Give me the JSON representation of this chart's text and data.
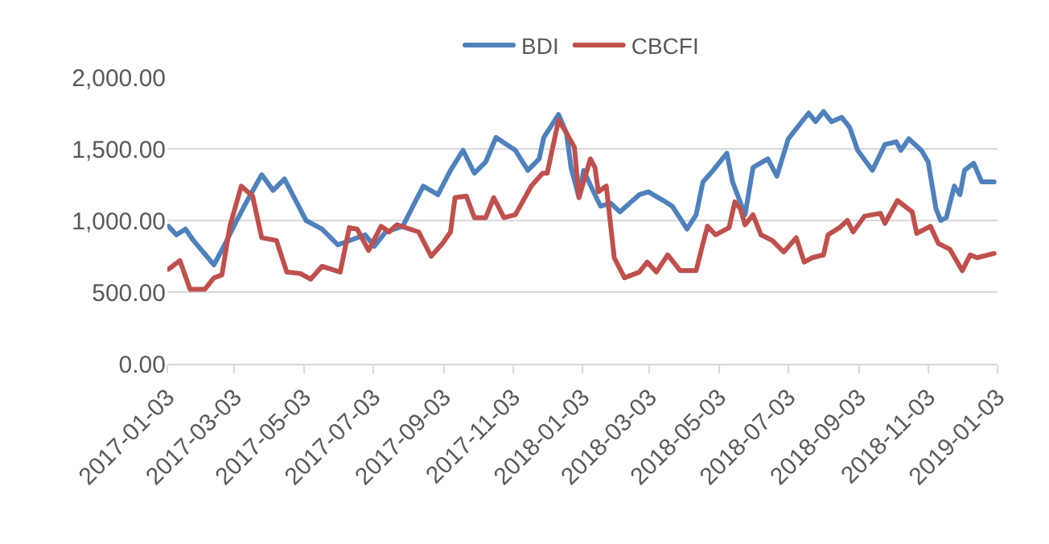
{
  "chart_data": {
    "type": "line",
    "legend": "top",
    "grid": "y",
    "marker": "none",
    "line_style": "solid",
    "xlim": [
      "2017-01-03",
      "2019-01-03"
    ],
    "xticks": [
      "2017-01-03",
      "2017-03-03",
      "2017-05-03",
      "2017-07-03",
      "2017-09-03",
      "2017-11-03",
      "2018-01-03",
      "2018-03-03",
      "2018-05-03",
      "2018-07-03",
      "2018-09-03",
      "2018-11-03",
      "2019-01-03"
    ],
    "ylim": [
      0,
      2000
    ],
    "yticks": [
      {
        "value": 0,
        "label": "0.00"
      },
      {
        "value": 500,
        "label": "500.00"
      },
      {
        "value": 1000,
        "label": "1,000.00"
      },
      {
        "value": 1500,
        "label": "1,500.00"
      },
      {
        "value": 2000,
        "label": "2,000.00"
      }
    ],
    "series": [
      {
        "name": "BDI",
        "color": "#4f81bd",
        "x": [
          "2017-01-04",
          "2017-01-11",
          "2017-01-19",
          "2017-01-26",
          "2017-02-13",
          "2017-02-23",
          "2017-03-05",
          "2017-03-13",
          "2017-03-27",
          "2017-04-06",
          "2017-04-16",
          "2017-05-05",
          "2017-05-19",
          "2017-06-02",
          "2017-06-26",
          "2017-07-04",
          "2017-07-14",
          "2017-07-29",
          "2017-08-07",
          "2017-08-16",
          "2017-08-29",
          "2017-09-09",
          "2017-09-20",
          "2017-09-30",
          "2017-10-10",
          "2017-10-19",
          "2017-11-05",
          "2017-11-16",
          "2017-11-26",
          "2017-11-30",
          "2017-12-13",
          "2017-12-20",
          "2017-12-24",
          "2017-12-31",
          "2018-01-04",
          "2018-01-14",
          "2018-01-19",
          "2018-01-28",
          "2018-02-05",
          "2018-02-12",
          "2018-02-22",
          "2018-03-02",
          "2018-03-15",
          "2018-03-23",
          "2018-04-05",
          "2018-04-13",
          "2018-04-19",
          "2018-04-28",
          "2018-05-10",
          "2018-05-15",
          "2018-05-26",
          "2018-06-02",
          "2018-06-15",
          "2018-06-23",
          "2018-07-03",
          "2018-07-13",
          "2018-07-21",
          "2018-07-27",
          "2018-08-03",
          "2018-08-10",
          "2018-08-19",
          "2018-08-26",
          "2018-09-02",
          "2018-09-15",
          "2018-09-26",
          "2018-10-06",
          "2018-10-10",
          "2018-10-17",
          "2018-10-28",
          "2018-11-03",
          "2018-11-10",
          "2018-11-14",
          "2018-11-19",
          "2018-11-26",
          "2018-12-01",
          "2018-12-05",
          "2018-12-13",
          "2018-12-20",
          "2018-12-31"
        ],
        "values": [
          960,
          900,
          940,
          860,
          690,
          840,
          1000,
          1120,
          1320,
          1210,
          1290,
          1000,
          940,
          830,
          900,
          820,
          920,
          960,
          1100,
          1240,
          1180,
          1350,
          1490,
          1330,
          1410,
          1580,
          1490,
          1350,
          1430,
          1580,
          1740,
          1610,
          1370,
          1160,
          1350,
          1180,
          1100,
          1120,
          1060,
          1110,
          1180,
          1200,
          1140,
          1100,
          940,
          1040,
          1270,
          1350,
          1470,
          1270,
          1040,
          1370,
          1430,
          1310,
          1570,
          1670,
          1750,
          1690,
          1760,
          1690,
          1720,
          1650,
          1490,
          1350,
          1530,
          1550,
          1490,
          1570,
          1490,
          1410,
          1080,
          1000,
          1020,
          1240,
          1180,
          1350,
          1400,
          1270,
          1270
        ]
      },
      {
        "name": "CBCFI",
        "color": "#c0504d",
        "x": [
          "2017-01-04",
          "2017-01-14",
          "2017-01-23",
          "2017-02-05",
          "2017-02-13",
          "2017-02-20",
          "2017-02-27",
          "2017-03-09",
          "2017-03-19",
          "2017-03-27",
          "2017-04-09",
          "2017-04-18",
          "2017-04-30",
          "2017-05-09",
          "2017-05-19",
          "2017-06-04",
          "2017-06-12",
          "2017-06-19",
          "2017-06-29",
          "2017-07-10",
          "2017-07-17",
          "2017-07-24",
          "2017-08-12",
          "2017-08-23",
          "2017-09-02",
          "2017-09-09",
          "2017-09-13",
          "2017-09-23",
          "2017-09-30",
          "2017-10-10",
          "2017-10-17",
          "2017-10-26",
          "2017-11-05",
          "2017-11-19",
          "2017-11-29",
          "2017-12-03",
          "2017-12-13",
          "2017-12-20",
          "2017-12-27",
          "2017-12-31",
          "2018-01-10",
          "2018-01-14",
          "2018-01-17",
          "2018-01-24",
          "2018-01-31",
          "2018-02-09",
          "2018-02-22",
          "2018-03-01",
          "2018-03-09",
          "2018-03-19",
          "2018-03-30",
          "2018-04-13",
          "2018-04-19",
          "2018-04-23",
          "2018-04-30",
          "2018-05-12",
          "2018-05-17",
          "2018-05-22",
          "2018-05-26",
          "2018-06-02",
          "2018-06-09",
          "2018-06-19",
          "2018-06-29",
          "2018-07-10",
          "2018-07-17",
          "2018-07-24",
          "2018-08-03",
          "2018-08-07",
          "2018-08-17",
          "2018-08-24",
          "2018-08-29",
          "2018-09-08",
          "2018-09-22",
          "2018-09-26",
          "2018-10-07",
          "2018-10-20",
          "2018-10-24",
          "2018-11-05",
          "2018-11-12",
          "2018-11-22",
          "2018-12-03",
          "2018-12-10",
          "2018-12-16",
          "2018-12-31"
        ],
        "values": [
          660,
          720,
          520,
          520,
          600,
          620,
          960,
          1240,
          1170,
          880,
          860,
          640,
          630,
          590,
          680,
          640,
          950,
          940,
          790,
          960,
          920,
          970,
          920,
          750,
          840,
          920,
          1160,
          1170,
          1020,
          1020,
          1160,
          1020,
          1040,
          1240,
          1330,
          1330,
          1700,
          1610,
          1510,
          1160,
          1430,
          1370,
          1200,
          1240,
          740,
          600,
          640,
          710,
          640,
          760,
          650,
          650,
          840,
          960,
          900,
          950,
          1130,
          1080,
          970,
          1040,
          900,
          860,
          780,
          880,
          710,
          740,
          760,
          900,
          950,
          1000,
          920,
          1030,
          1050,
          980,
          1140,
          1060,
          910,
          960,
          840,
          800,
          650,
          760,
          740,
          770
        ]
      }
    ]
  }
}
